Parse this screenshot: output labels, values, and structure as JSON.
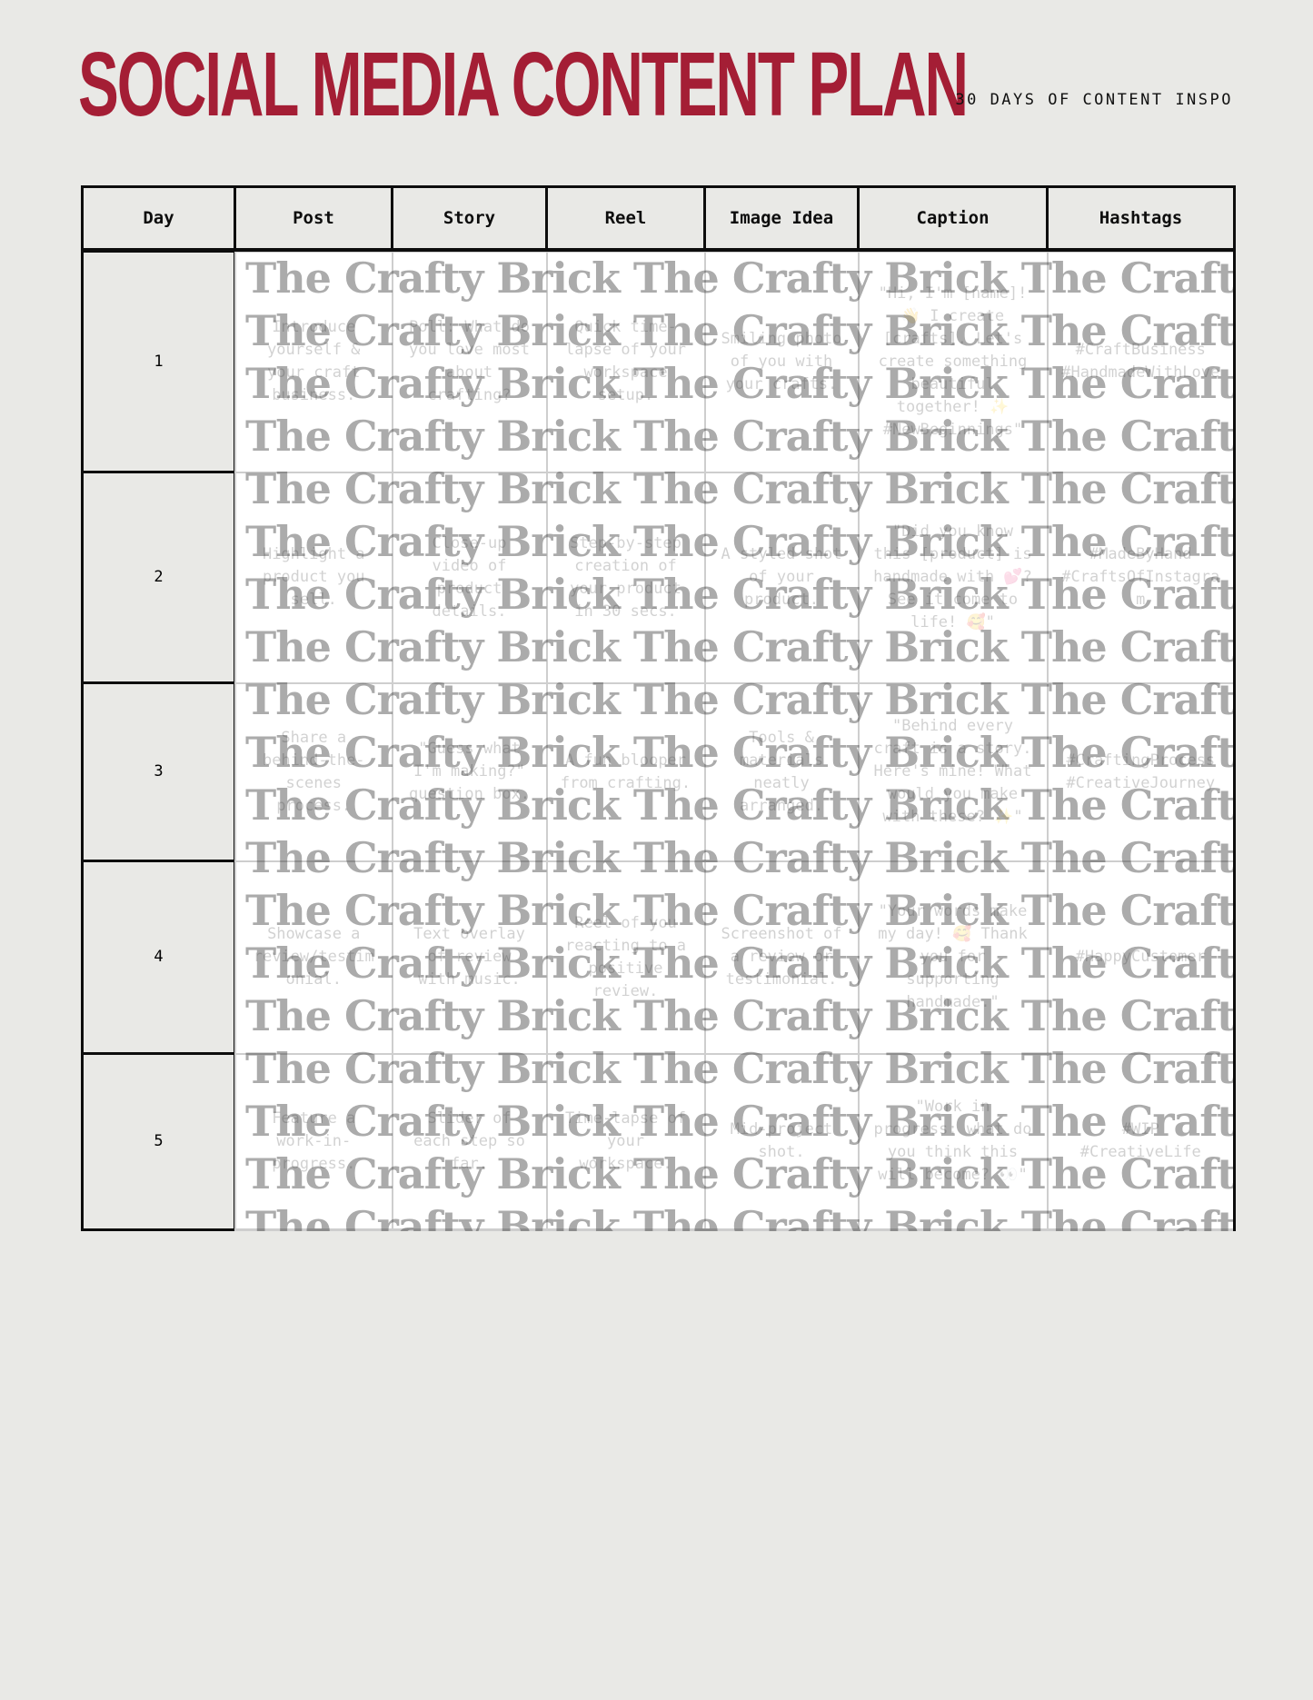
{
  "header": {
    "title": "SOCIAL MEDIA CONTENT PLAN",
    "subtitle": "30 DAYS OF CONTENT INSPO",
    "title_color": "#a41e35"
  },
  "watermark": {
    "text": "The Crafty Brick",
    "repeat_horizontal": 3,
    "lines": 19
  },
  "table": {
    "columns": [
      "Day",
      "Post",
      "Story",
      "Reel",
      "Image Idea",
      "Caption",
      "Hashtags"
    ],
    "rows": [
      {
        "day": "1",
        "post": "Introduce yourself & your craft business.",
        "story": "Poll: What do you love most about crafting?",
        "reel": "Quick time-lapse of your workspace setup.",
        "image_idea": "Smiling photo of you with your crafts.",
        "caption": "\"Hi, I'm [name]! 👋 I create [crafts]. Let's create something beautiful together! ✨ #NewBeginnings\"",
        "hashtags": "#CraftBusiness #HandmadeWithLove"
      },
      {
        "day": "2",
        "post": "Highlight a product you sell.",
        "story": "Close-up video of product details.",
        "reel": "Step-by-step creation of your product in 30 secs.",
        "image_idea": "A styled shot of your product.",
        "caption": "\"Did you know this [product] is handmade with 💕? See it come to life! 🥰\"",
        "hashtags": "#MadeByHand #CraftsOfInstagram"
      },
      {
        "day": "3",
        "post": "Share a behind-the-scenes process.",
        "story": "\"Guess what I'm making?\" question box.",
        "reel": "A fun blooper from crafting.",
        "image_idea": "Tools & materials neatly arranged.",
        "caption": "\"Behind every craft is a story. Here's mine! What would you make with these? ✨\"",
        "hashtags": "#CraftingProcess #CreativeJourney"
      },
      {
        "day": "4",
        "post": "Showcase a review/testimonial.",
        "story": "Text overlay of review with music.",
        "reel": "Reel of you reacting to a positive review.",
        "image_idea": "Screenshot of a review or testimonial.",
        "caption": "\"Your words make my day! 🥰 Thank you for supporting handmade.\"",
        "hashtags": "#HappyCustomer"
      },
      {
        "day": "5",
        "post": "Feature a work-in-progress.",
        "story": "Slider of each step so far.",
        "reel": "Time-lapse of your workspace.",
        "image_idea": "Mid-project shot.",
        "caption": "\"Work in progress: what do you think this will become? 👀\"",
        "hashtags": "#WIP #CreativeLife"
      }
    ]
  }
}
